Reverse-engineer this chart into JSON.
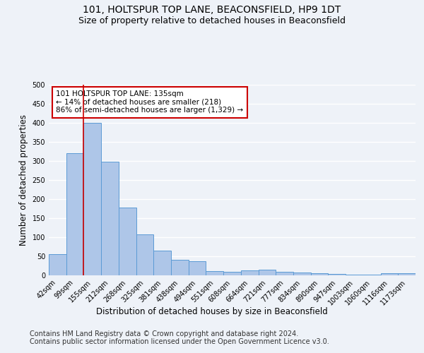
{
  "title": "101, HOLTSPUR TOP LANE, BEACONSFIELD, HP9 1DT",
  "subtitle": "Size of property relative to detached houses in Beaconsfield",
  "xlabel": "Distribution of detached houses by size in Beaconsfield",
  "ylabel": "Number of detached properties",
  "categories": [
    "42sqm",
    "99sqm",
    "155sqm",
    "212sqm",
    "268sqm",
    "325sqm",
    "381sqm",
    "438sqm",
    "494sqm",
    "551sqm",
    "608sqm",
    "664sqm",
    "721sqm",
    "777sqm",
    "834sqm",
    "890sqm",
    "947sqm",
    "1003sqm",
    "1060sqm",
    "1116sqm",
    "1173sqm"
  ],
  "values": [
    55,
    320,
    400,
    298,
    177,
    108,
    65,
    40,
    37,
    12,
    10,
    13,
    15,
    10,
    8,
    5,
    3,
    1,
    1,
    6,
    6
  ],
  "bar_color": "#aec6e8",
  "bar_edge_color": "#5b9bd5",
  "vline_pos": 1.5,
  "vline_color": "#cc0000",
  "annotation_text": "101 HOLTSPUR TOP LANE: 135sqm\n← 14% of detached houses are smaller (218)\n86% of semi-detached houses are larger (1,329) →",
  "annotation_box_facecolor": "#ffffff",
  "annotation_box_edgecolor": "#cc0000",
  "ylim": [
    0,
    500
  ],
  "yticks": [
    0,
    50,
    100,
    150,
    200,
    250,
    300,
    350,
    400,
    450,
    500
  ],
  "footer_text": "Contains HM Land Registry data © Crown copyright and database right 2024.\nContains public sector information licensed under the Open Government Licence v3.0.",
  "bg_color": "#eef2f8",
  "grid_color": "#ffffff",
  "title_fontsize": 10,
  "subtitle_fontsize": 9,
  "axis_label_fontsize": 8.5,
  "tick_fontsize": 7,
  "footer_fontsize": 7,
  "annotation_fontsize": 7.5
}
